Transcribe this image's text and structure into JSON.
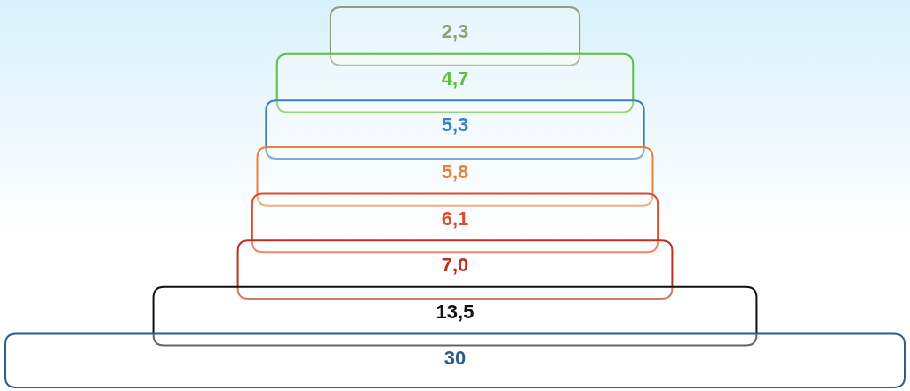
{
  "chart_data": {
    "type": "other",
    "categories": [
      null,
      null,
      null,
      null,
      null,
      null,
      null,
      null
    ],
    "values": [
      2.3,
      4.7,
      5.3,
      5.8,
      6.1,
      7.0,
      13.5,
      30
    ],
    "value_labels": [
      "2,3",
      "4,7",
      "5,3",
      "5,8",
      "6,1",
      "7,0",
      "13,5",
      "30"
    ],
    "colors": [
      "#8fa07a",
      "#5fbf3a",
      "#3a7fc1",
      "#e8823a",
      "#e04a2e",
      "#b8321f",
      "#111111",
      "#2f5b8f"
    ]
  }
}
